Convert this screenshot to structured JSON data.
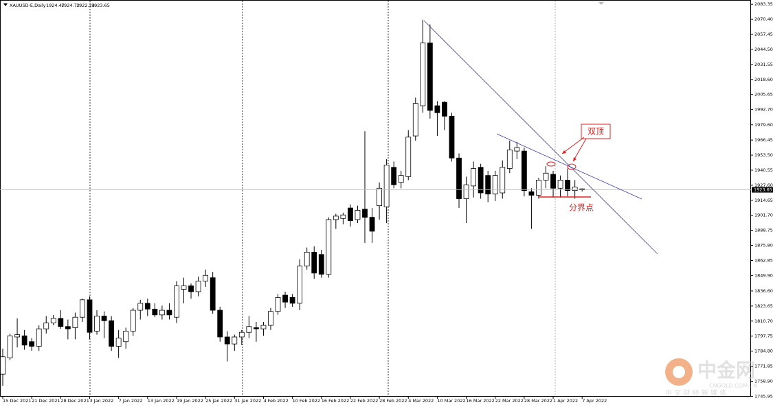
{
  "chart_data": {
    "type": "candlestick",
    "symbol": "XAUUSD-E,Daily",
    "up_color": "#ffffff",
    "down_color": "#000000",
    "outline_color": "#000000",
    "categories": [
      "15 Dec 2021",
      null,
      null,
      null,
      "21 Dec 2021",
      null,
      null,
      null,
      "28 Dec 2021",
      null,
      null,
      null,
      "3 Jan 2022",
      null,
      null,
      null,
      "7 Jan 2022",
      null,
      null,
      null,
      "13 Jan 2022",
      null,
      null,
      null,
      "19 Jan 2022",
      null,
      null,
      null,
      "25 Jan 2022",
      null,
      null,
      null,
      "31 Jan 2022",
      null,
      null,
      null,
      "4 Feb 2022",
      null,
      null,
      null,
      "10 Feb 2022",
      null,
      null,
      null,
      "16 Feb 2022",
      null,
      null,
      null,
      "22 Feb 2022",
      null,
      null,
      null,
      "28 Feb 2022",
      null,
      null,
      null,
      "4 Mar 2022",
      null,
      null,
      null,
      "10 Mar 2022",
      null,
      null,
      null,
      "16 Mar 2022",
      null,
      null,
      null,
      "22 Mar 2022",
      null,
      null,
      null,
      "28 Mar 2022",
      null,
      null,
      null,
      "1 Apr 2022",
      null,
      null,
      null,
      "7 Apr 2022"
    ],
    "open": [
      1765,
      1779,
      1797,
      1798,
      1793,
      1789,
      1804,
      1809,
      1813,
      1806,
      1805,
      1814,
      1829,
      1802,
      1815,
      1811,
      1789,
      1793,
      1802,
      1820,
      1826,
      1821,
      1816,
      1820,
      1814,
      1838,
      1841,
      1836,
      1845,
      1848,
      1820,
      1797,
      1791,
      1797,
      1801,
      1805,
      1804,
      1807,
      1819,
      1833,
      1831,
      1826,
      1858,
      1870,
      1868,
      1851,
      1898,
      1899,
      1908,
      1898,
      1907,
      1900,
      1910,
      1909,
      1943,
      1930,
      1935,
      1970,
      1996,
      2050,
      1996,
      1999,
      1987,
      1951,
      1916,
      1927,
      1943,
      1936,
      1920,
      1921,
      1942,
      1957,
      1957,
      1922,
      1919,
      1932,
      1937,
      1925,
      1932,
      1923,
      1924.47
    ],
    "high": [
      1787,
      1800,
      1813,
      1803,
      1796,
      1807,
      1815,
      1816,
      1820,
      1812,
      1818,
      1830,
      1832,
      1820,
      1819,
      1815,
      1803,
      1805,
      1822,
      1829,
      1830,
      1826,
      1824,
      1826,
      1845,
      1848,
      1843,
      1849,
      1855,
      1853,
      1823,
      1802,
      1799,
      1803,
      1815,
      1810,
      1810,
      1822,
      1834,
      1836,
      1834,
      1864,
      1874,
      1875,
      1872,
      1900,
      1903,
      1904,
      1911,
      1910,
      1974,
      1908,
      1930,
      1950,
      1948,
      1940,
      1975,
      2003,
      2070,
      2066,
      2000,
      2000,
      1990,
      1955,
      1935,
      1948,
      1946,
      1940,
      1940,
      1949,
      1966,
      1965,
      1960,
      1925,
      1934,
      1944,
      1940,
      1936,
      1942,
      1932,
      1924.72
    ],
    "low": [
      1755,
      1777,
      1788,
      1786,
      1785,
      1785,
      1800,
      1807,
      1804,
      1795,
      1795,
      1810,
      1795,
      1799,
      1796,
      1785,
      1779,
      1787,
      1798,
      1812,
      1815,
      1814,
      1812,
      1812,
      1809,
      1826,
      1830,
      1832,
      1840,
      1817,
      1793,
      1776,
      1785,
      1790,
      1796,
      1793,
      1798,
      1803,
      1816,
      1822,
      1823,
      1820,
      1855,
      1847,
      1848,
      1848,
      1890,
      1894,
      1892,
      1895,
      1878,
      1878,
      1898,
      1895,
      1925,
      1925,
      1932,
      1966,
      1990,
      1985,
      1970,
      1975,
      1948,
      1908,
      1895,
      1917,
      1916,
      1913,
      1914,
      1916,
      1938,
      1950,
      1918,
      1890,
      1916,
      1925,
      1917,
      1917,
      1918,
      1916,
      1922.24
    ],
    "close": [
      1780,
      1798,
      1799,
      1790,
      1789,
      1804,
      1809,
      1813,
      1806,
      1804,
      1814,
      1829,
      1801,
      1815,
      1811,
      1789,
      1796,
      1802,
      1820,
      1826,
      1821,
      1816,
      1820,
      1816,
      1841,
      1841,
      1836,
      1845,
      1850,
      1820,
      1797,
      1791,
      1797,
      1801,
      1806,
      1804,
      1807,
      1819,
      1831,
      1827,
      1826,
      1858,
      1870,
      1852,
      1851,
      1898,
      1901,
      1902,
      1897,
      1906,
      1900,
      1888,
      1925,
      1945,
      1928,
      1936,
      1969,
      1998,
      2050,
      1992,
      1990,
      1987,
      1951,
      1916,
      1928,
      1942,
      1921,
      1920,
      1936,
      1943,
      1958,
      1960,
      1923,
      1919,
      1932,
      1938,
      1925,
      1932,
      1923,
      1926,
      1923.65
    ],
    "ylim": [
      1745.6,
      2087
    ],
    "yticks": [
      2083.35,
      {
        "value": 2070.4,
        "label": "2070.40"
      },
      2057.45,
      {
        "value": 2044.5,
        "label": "2044.50"
      },
      2031.55,
      {
        "value": 2018.6,
        "label": "2018.60"
      },
      2005.65,
      {
        "value": 1992.7,
        "label": "1992.70"
      },
      {
        "value": 1979.6,
        "label": "1979.60"
      },
      1966.45,
      {
        "value": 1953.5,
        "label": "1953.50"
      },
      1940.55,
      {
        "value": 1927.6,
        "label": "1927.60"
      },
      1914.65,
      {
        "value": 1901.7,
        "label": "1901.70"
      },
      1888.75,
      {
        "value": 1875.8,
        "label": "1875.80"
      },
      1862.85,
      {
        "value": 1849.9,
        "label": "1849.90"
      },
      {
        "value": 1836.6,
        "label": "1836.60"
      },
      1823.65,
      {
        "value": 1810.7,
        "label": "1810.70"
      },
      1797.75,
      {
        "value": 1784.8,
        "label": "1784.80"
      },
      1771.85,
      {
        "value": 1758.9,
        "label": "1758.90"
      },
      1745.95
    ],
    "annotations": [
      "双顶",
      "分界点"
    ],
    "watermark": {
      "brand": "中金网",
      "site": "CNGOLD.COM.CN",
      "slogan": "中 文 财 经 新 媒 体"
    }
  }
}
